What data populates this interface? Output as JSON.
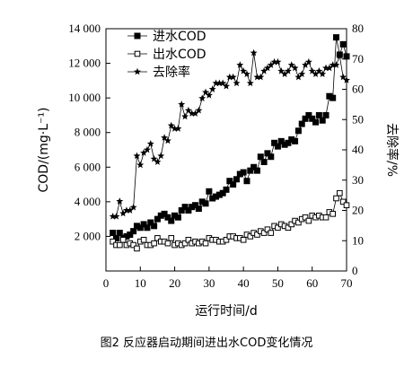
{
  "caption": "图2 反应器启动期间进出水COD变化情况",
  "chart_data": {
    "type": "line",
    "xlabel": "运行时间/d",
    "ylabel_left": "COD/(mg·L⁻¹)",
    "ylabel_right": "去除率/%",
    "xlim": [
      0,
      70
    ],
    "ylim_left": [
      0,
      14000
    ],
    "ylim_right": [
      0,
      80
    ],
    "x_ticks": [
      "0",
      "10",
      "20",
      "30",
      "40",
      "50",
      "60",
      "70"
    ],
    "y_left_ticks": [
      "2 000",
      "4 000",
      "6 000",
      "8 000",
      "10 000",
      "12 000",
      "14 000"
    ],
    "y_right_ticks": [
      "0",
      "10",
      "20",
      "30",
      "40",
      "50",
      "60",
      "70",
      "80"
    ],
    "legend_position": "top-left",
    "series": [
      {
        "name": "进水COD",
        "axis": "left",
        "marker": "filled-square",
        "color": "#000000",
        "x": [
          2,
          3,
          4,
          5,
          6,
          7,
          8,
          9,
          10,
          11,
          12,
          13,
          14,
          15,
          16,
          17,
          18,
          19,
          20,
          21,
          22,
          23,
          24,
          25,
          26,
          27,
          28,
          29,
          30,
          31,
          32,
          33,
          34,
          35,
          36,
          37,
          38,
          39,
          40,
          41,
          42,
          43,
          44,
          45,
          46,
          47,
          48,
          49,
          50,
          51,
          52,
          53,
          54,
          55,
          56,
          57,
          58,
          59,
          60,
          61,
          62,
          63,
          64,
          65,
          66,
          67,
          68,
          69,
          70
        ],
        "y": [
          2200,
          1900,
          2200,
          1900,
          2000,
          2100,
          2300,
          2600,
          2500,
          2700,
          2500,
          2800,
          2600,
          3000,
          3200,
          3300,
          3100,
          2900,
          3200,
          3100,
          3500,
          3700,
          3500,
          3700,
          3800,
          3600,
          4000,
          3900,
          4600,
          4200,
          4300,
          4400,
          4500,
          4700,
          5200,
          5000,
          5300,
          5600,
          5700,
          5200,
          5800,
          6000,
          5800,
          6600,
          6300,
          6800,
          6600,
          7400,
          7200,
          7500,
          7300,
          7400,
          7600,
          7500,
          8100,
          8500,
          8800,
          9000,
          8800,
          8600,
          9000,
          8700,
          9000,
          10100,
          10000,
          13500,
          12500,
          13100,
          12400
        ]
      },
      {
        "name": "出水COD",
        "axis": "left",
        "marker": "open-square",
        "color": "#000000",
        "x": [
          2,
          3,
          4,
          5,
          6,
          7,
          8,
          9,
          10,
          11,
          12,
          13,
          14,
          15,
          16,
          17,
          18,
          19,
          20,
          21,
          22,
          23,
          24,
          25,
          26,
          27,
          28,
          29,
          30,
          31,
          32,
          33,
          34,
          35,
          36,
          37,
          38,
          39,
          40,
          41,
          42,
          43,
          44,
          45,
          46,
          47,
          48,
          49,
          50,
          51,
          52,
          53,
          54,
          55,
          56,
          57,
          58,
          59,
          60,
          61,
          62,
          63,
          64,
          65,
          66,
          67,
          68,
          69,
          70
        ],
        "y": [
          1700,
          1500,
          1500,
          1800,
          1500,
          1600,
          1500,
          1300,
          1700,
          1800,
          1500,
          1500,
          1600,
          1900,
          1700,
          1700,
          1600,
          1900,
          1500,
          1600,
          1500,
          1600,
          1800,
          1600,
          1700,
          1600,
          1700,
          1600,
          1900,
          1800,
          1800,
          1700,
          1700,
          1800,
          2000,
          2000,
          1900,
          1900,
          1800,
          2100,
          2000,
          2200,
          2100,
          2300,
          2200,
          2400,
          2200,
          2600,
          2500,
          2700,
          2600,
          2500,
          2700,
          2900,
          2800,
          3000,
          3100,
          2900,
          3200,
          3100,
          3200,
          3100,
          3100,
          3400,
          3300,
          4200,
          4500,
          4000,
          3800
        ]
      },
      {
        "name": "去除率",
        "axis": "right",
        "marker": "star",
        "color": "#000000",
        "x": [
          2,
          3,
          4,
          5,
          6,
          7,
          8,
          9,
          10,
          11,
          12,
          13,
          14,
          15,
          16,
          17,
          18,
          19,
          20,
          21,
          22,
          23,
          24,
          25,
          26,
          27,
          28,
          29,
          30,
          31,
          32,
          33,
          34,
          35,
          36,
          37,
          38,
          39,
          40,
          41,
          42,
          43,
          44,
          45,
          46,
          47,
          48,
          49,
          50,
          51,
          52,
          53,
          54,
          55,
          56,
          57,
          58,
          59,
          60,
          61,
          62,
          63,
          64,
          65,
          66,
          67,
          68,
          69,
          70
        ],
        "y": [
          18,
          18,
          23,
          19,
          20,
          20,
          21,
          38,
          35,
          39,
          40,
          42,
          37,
          36,
          38,
          44,
          43,
          48,
          47,
          47,
          55,
          51,
          53,
          52,
          52,
          53,
          57,
          59,
          58,
          60,
          62,
          62,
          62,
          61,
          64,
          64,
          62,
          68,
          66,
          65,
          62,
          72,
          64,
          64,
          66,
          67,
          68,
          69,
          69,
          66,
          65,
          66,
          68,
          67,
          64,
          65,
          68,
          69,
          66,
          65,
          66,
          65,
          67,
          67,
          68,
          68,
          71,
          64,
          63
        ]
      }
    ]
  }
}
